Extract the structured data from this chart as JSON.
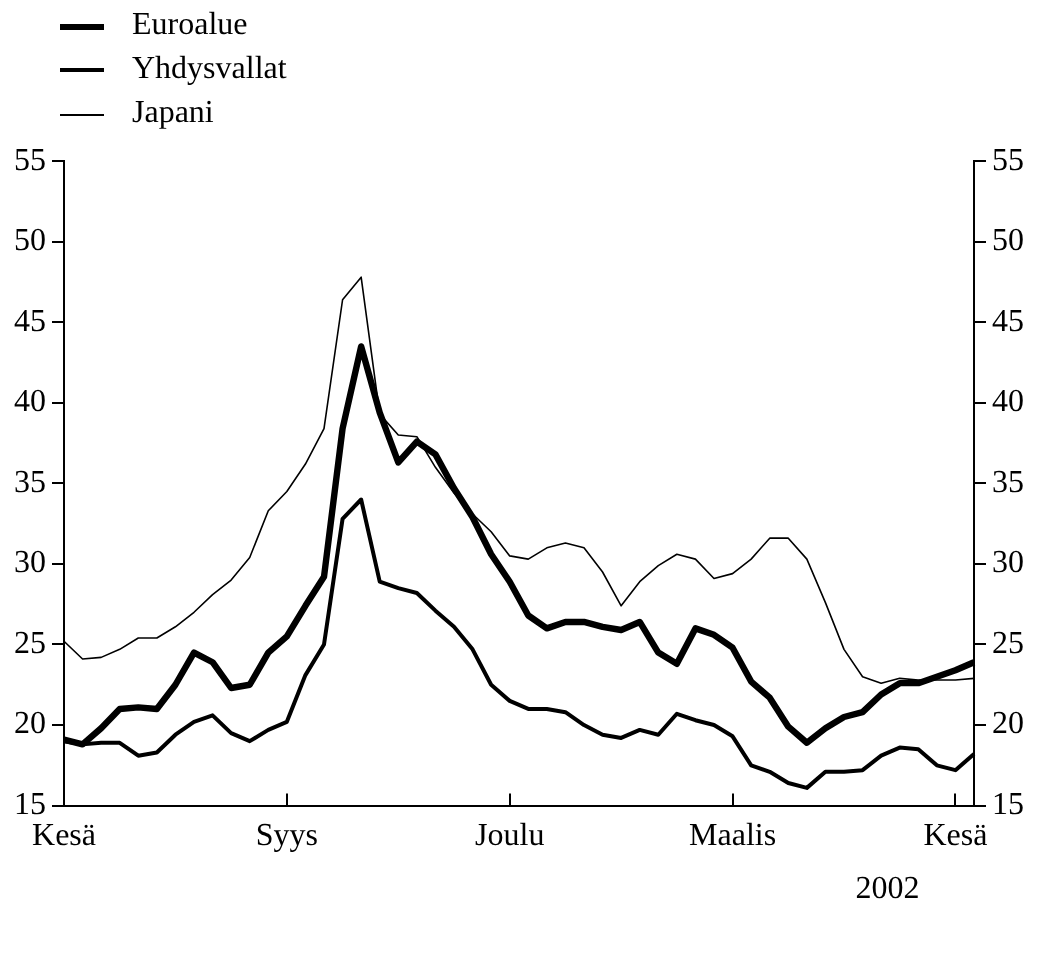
{
  "chart_data": {
    "type": "line",
    "annotations": [
      "2002"
    ],
    "categories": [
      "Kesä",
      null,
      null,
      null,
      null,
      null,
      null,
      null,
      null,
      null,
      null,
      null,
      "Syys",
      null,
      null,
      null,
      null,
      null,
      null,
      null,
      null,
      null,
      null,
      null,
      "Joulu",
      null,
      null,
      null,
      null,
      null,
      null,
      null,
      null,
      null,
      null,
      null,
      "Maalis",
      null,
      null,
      null,
      null,
      null,
      null,
      null,
      null,
      null,
      null,
      null,
      "Kesä",
      null
    ],
    "ylim": [
      15,
      55
    ],
    "yticks": [
      15,
      20,
      25,
      30,
      35,
      40,
      45,
      50,
      55
    ],
    "y2lim": [
      15,
      55
    ],
    "y2ticks": [
      15,
      20,
      25,
      30,
      35,
      40,
      45,
      50,
      55
    ],
    "grid": false,
    "legend": "top left",
    "marker": "none",
    "series": [
      {
        "name": "Euroalue",
        "color": "#000000",
        "values": [
          19.1,
          18.8,
          19.8,
          21.0,
          21.1,
          21.0,
          22.5,
          24.5,
          23.9,
          22.3,
          22.5,
          24.5,
          25.5,
          27.4,
          29.2,
          38.4,
          43.5,
          39.4,
          36.3,
          37.6,
          36.8,
          34.7,
          32.9,
          30.6,
          28.9,
          26.8,
          26.0,
          26.4,
          26.4,
          26.1,
          25.9,
          26.4,
          24.5,
          23.8,
          26.0,
          25.6,
          24.8,
          22.7,
          21.7,
          19.9,
          18.9,
          19.8,
          20.5,
          20.8,
          21.9,
          22.6,
          22.6,
          23.0,
          23.4,
          23.9
        ]
      },
      {
        "name": "Yhdysvallat",
        "color": "#000000",
        "values": [
          19.0,
          18.8,
          18.9,
          18.9,
          18.1,
          18.3,
          19.4,
          20.2,
          20.6,
          19.5,
          19.0,
          19.7,
          20.2,
          23.1,
          25.0,
          32.8,
          34.0,
          28.9,
          28.5,
          28.2,
          27.1,
          26.1,
          24.7,
          22.5,
          21.5,
          21.0,
          21.0,
          20.8,
          20.0,
          19.4,
          19.2,
          19.7,
          19.4,
          20.7,
          20.3,
          20.0,
          19.3,
          17.5,
          17.1,
          16.4,
          16.1,
          17.1,
          17.1,
          17.2,
          18.1,
          18.6,
          18.5,
          17.5,
          17.2,
          18.2
        ]
      },
      {
        "name": "Japani",
        "color": "#000000",
        "values": [
          25.2,
          24.1,
          24.2,
          24.7,
          25.4,
          25.4,
          26.1,
          27.0,
          28.1,
          29.0,
          30.4,
          33.3,
          34.5,
          36.2,
          38.4,
          46.4,
          47.8,
          39.3,
          38.0,
          37.9,
          36.0,
          34.4,
          33.1,
          32.0,
          30.5,
          30.3,
          31.0,
          31.3,
          31.0,
          29.5,
          27.4,
          28.9,
          29.9,
          30.6,
          30.3,
          29.1,
          29.4,
          30.3,
          31.6,
          31.6,
          30.3,
          27.6,
          24.7,
          23.0,
          22.6,
          22.9,
          22.8,
          22.8,
          22.8,
          22.9
        ]
      }
    ]
  }
}
